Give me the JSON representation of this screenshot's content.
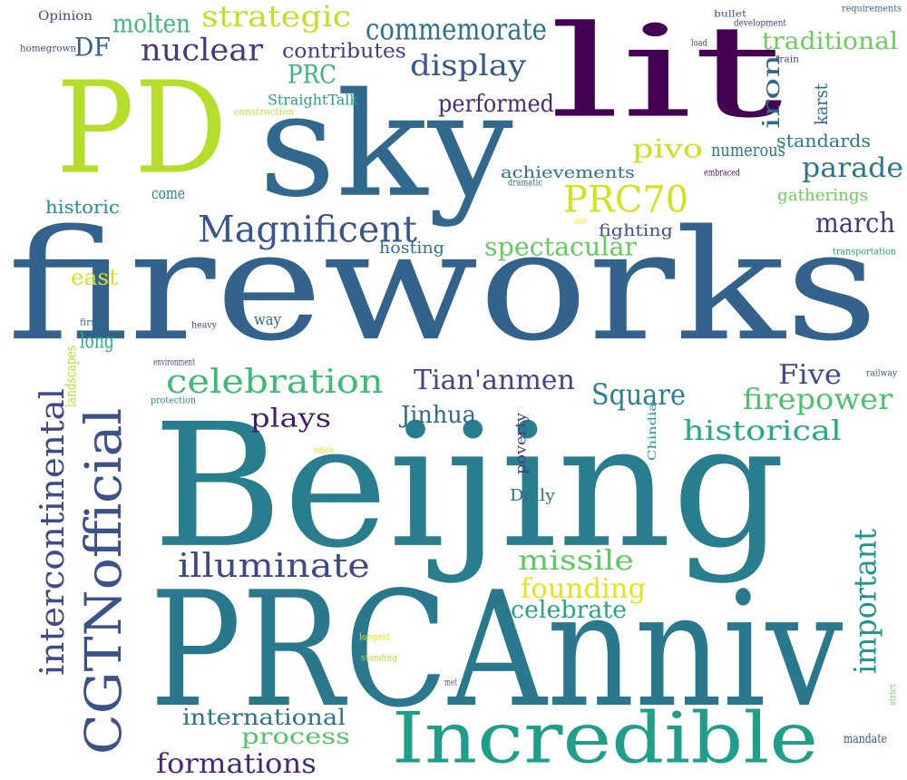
{
  "words": [
    {
      "text": "fireworks",
      "color": "#33638d",
      "vertical": false
    },
    {
      "text": "Beijing",
      "color": "#287d8e",
      "vertical": false
    },
    {
      "text": "PRCAnniv",
      "color": "#2a788e",
      "vertical": false
    },
    {
      "text": "PD",
      "color": "#b5de2b",
      "vertical": false
    },
    {
      "text": "sky",
      "color": "#31688e",
      "vertical": false
    },
    {
      "text": "lit",
      "color": "#440154",
      "vertical": false
    },
    {
      "text": "Incredible",
      "color": "#1f9e89",
      "vertical": false
    },
    {
      "text": "CGTNofficial",
      "color": "#3b528b",
      "vertical": true
    },
    {
      "text": "Magnificent",
      "color": "#39568c",
      "vertical": false
    },
    {
      "text": "celebration",
      "color": "#3dbc74",
      "vertical": false
    },
    {
      "text": "intercontinental",
      "color": "#3e4a89",
      "vertical": true
    },
    {
      "text": "commemorate",
      "color": "#2c728e",
      "vertical": false
    },
    {
      "text": "PRC70",
      "color": "#d2e21b",
      "vertical": false
    },
    {
      "text": "illuminate",
      "color": "#3e4989",
      "vertical": false
    },
    {
      "text": "strategic",
      "color": "#c2df23",
      "vertical": false
    },
    {
      "text": "nuclear",
      "color": "#453781",
      "vertical": false
    },
    {
      "text": "display",
      "color": "#38588c",
      "vertical": false
    },
    {
      "text": "traditional",
      "color": "#6ccd5a",
      "vertical": false
    },
    {
      "text": "Tian'anmen",
      "color": "#3f4788",
      "vertical": false
    },
    {
      "text": "Square",
      "color": "#26828e",
      "vertical": false
    },
    {
      "text": "firepower",
      "color": "#4ac16d",
      "vertical": false
    },
    {
      "text": "historical",
      "color": "#25ab82",
      "vertical": false
    },
    {
      "text": "missile",
      "color": "#5ec962",
      "vertical": false
    },
    {
      "text": "founding",
      "color": "#e5e419",
      "vertical": false
    },
    {
      "text": "important",
      "color": "#1f968b",
      "vertical": true
    },
    {
      "text": "parade",
      "color": "#2a778e",
      "vertical": false
    },
    {
      "text": "march",
      "color": "#443a83",
      "vertical": false
    },
    {
      "text": "Five",
      "color": "#3e4c8a",
      "vertical": false
    },
    {
      "text": "spectacular",
      "color": "#63cb5f",
      "vertical": false
    },
    {
      "text": "plays",
      "color": "#481a6c",
      "vertical": false
    },
    {
      "text": "Jinhua",
      "color": "#306a8e",
      "vertical": false
    },
    {
      "text": "celebrate",
      "color": "#22a785",
      "vertical": false
    },
    {
      "text": "process",
      "color": "#52c569",
      "vertical": false
    },
    {
      "text": "international",
      "color": "#2c738e",
      "vertical": false
    },
    {
      "text": "formations",
      "color": "#482878",
      "vertical": false
    },
    {
      "text": "molten",
      "color": "#3aba76",
      "vertical": false
    },
    {
      "text": "DF",
      "color": "#355f8d",
      "vertical": false
    },
    {
      "text": "PRC",
      "color": "#35b779",
      "vertical": false
    },
    {
      "text": "contributes",
      "color": "#433e85",
      "vertical": false
    },
    {
      "text": "performed",
      "color": "#472c7a",
      "vertical": false
    },
    {
      "text": "iron",
      "color": "#31688e",
      "vertical": true
    },
    {
      "text": "karst",
      "color": "#2e6e8e",
      "vertical": true
    },
    {
      "text": "standards",
      "color": "#297a8e",
      "vertical": false
    },
    {
      "text": "pivo",
      "color": "#cae11f",
      "vertical": false
    },
    {
      "text": "numerous",
      "color": "#2a788e",
      "vertical": false
    },
    {
      "text": "achievements",
      "color": "#2d708e",
      "vertical": false
    },
    {
      "text": "gatherings",
      "color": "#6ece58",
      "vertical": false
    },
    {
      "text": "fighting",
      "color": "#3b528b",
      "vertical": false
    },
    {
      "text": "hosting",
      "color": "#2d718e",
      "vertical": false
    },
    {
      "text": "historic",
      "color": "#21918c",
      "vertical": false
    },
    {
      "text": "come",
      "color": "#23898e",
      "vertical": false
    },
    {
      "text": "east",
      "color": "#d8e219",
      "vertical": false
    },
    {
      "text": "long",
      "color": "#2db27d",
      "vertical": false
    },
    {
      "text": "landscapes",
      "color": "#b8de29",
      "vertical": true
    },
    {
      "text": "way",
      "color": "#31688e",
      "vertical": false
    },
    {
      "text": "poverty",
      "color": "#433d84",
      "vertical": true
    },
    {
      "text": "Daily",
      "color": "#2e6f8e",
      "vertical": false
    },
    {
      "text": "Chindia",
      "color": "#1f9e89",
      "vertical": true
    },
    {
      "text": "StraightTalk",
      "color": "#20a486",
      "vertical": false
    },
    {
      "text": "Opinion",
      "color": "#3e4a89",
      "vertical": false
    },
    {
      "text": "homegrown",
      "color": "#3f4889",
      "vertical": false
    },
    {
      "text": "construction",
      "color": "#bddf26",
      "vertical": false
    },
    {
      "text": "bullet",
      "color": "#3b528b",
      "vertical": false
    },
    {
      "text": "development",
      "color": "#433e85",
      "vertical": false
    },
    {
      "text": "requirements",
      "color": "#31688e",
      "vertical": false
    },
    {
      "text": "load",
      "color": "#404688",
      "vertical": false
    },
    {
      "text": "train",
      "color": "#3e4989",
      "vertical": false
    },
    {
      "text": "embraced",
      "color": "#471063",
      "vertical": false
    },
    {
      "text": "dramatic",
      "color": "#2d708e",
      "vertical": false
    },
    {
      "text": "past",
      "color": "#fde725",
      "vertical": false
    },
    {
      "text": "transportation",
      "color": "#1fa287",
      "vertical": false
    },
    {
      "text": "first",
      "color": "#2f6c8e",
      "vertical": false
    },
    {
      "text": "heavy",
      "color": "#3e4a89",
      "vertical": false
    },
    {
      "text": "environment",
      "color": "#414487",
      "vertical": false
    },
    {
      "text": "protection",
      "color": "#21918c",
      "vertical": false
    },
    {
      "text": "railway",
      "color": "#355f8d",
      "vertical": false
    },
    {
      "text": "vehicle",
      "color": "#d2e21b",
      "vertical": false
    },
    {
      "text": "longest",
      "color": "#e5e419",
      "vertical": false
    },
    {
      "text": "standing",
      "color": "#b5de2b",
      "vertical": false
    },
    {
      "text": "met",
      "color": "#33638d",
      "vertical": false
    },
    {
      "text": "strict",
      "color": "#73d056",
      "vertical": true
    },
    {
      "text": "mandate",
      "color": "#39568c",
      "vertical": false
    }
  ]
}
